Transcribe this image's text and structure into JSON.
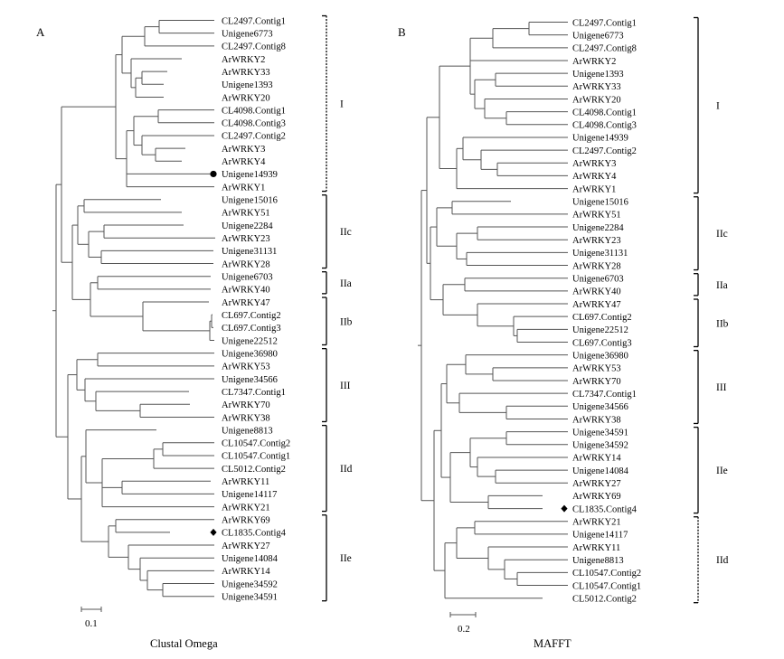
{
  "panels": [
    {
      "id": "A",
      "letter": "A",
      "caption": "Clustal Omega",
      "scale_label": "0.1",
      "leaves": [
        "CL2497.Contig1",
        "Unigene6773",
        "CL2497.Contig8",
        "ArWRKY2",
        "ArWRKY33",
        "Unigene1393",
        "ArWRKY20",
        "CL4098.Contig1",
        "CL4098.Contig3",
        "CL2497.Contig2",
        "ArWRKY3",
        "ArWRKY4",
        "Unigene14939",
        "ArWRKY1",
        "Unigene15016",
        "ArWRKY51",
        "Unigene2284",
        "ArWRKY23",
        "Unigene31131",
        "ArWRKY28",
        "Unigene6703",
        "ArWRKY40",
        "ArWRKY47",
        "CL697.Contig2",
        "CL697.Contig3",
        "Unigene22512",
        "Unigene36980",
        "ArWRKY53",
        "Unigene34566",
        "CL7347.Contig1",
        "ArWRKY70",
        "ArWRKY38",
        "Unigene8813",
        "CL10547.Contig2",
        "CL10547.Contig1",
        "CL5012.Contig2",
        "ArWRKY11",
        "Unigene14117",
        "ArWRKY21",
        "ArWRKY69",
        "CL1835.Contig4",
        "ArWRKY27",
        "Unigene14084",
        "ArWRKY14",
        "Unigene34592",
        "Unigene34591"
      ],
      "groups": [
        {
          "label": "I",
          "from": 0,
          "to": 13,
          "dashed": true
        },
        {
          "label": "IIc",
          "from": 14,
          "to": 19,
          "dashed": false
        },
        {
          "label": "IIa",
          "from": 20,
          "to": 21,
          "dashed": false
        },
        {
          "label": "IIb",
          "from": 22,
          "to": 25,
          "dashed": false
        },
        {
          "label": "III",
          "from": 26,
          "to": 31,
          "dashed": false
        },
        {
          "label": "IId",
          "from": 32,
          "to": 38,
          "dashed": false
        },
        {
          "label": "IIe",
          "from": 39,
          "to": 45,
          "dashed": false
        }
      ],
      "markers": [
        {
          "leaf": "Unigene14939",
          "shape": "circle"
        },
        {
          "leaf": "CL1835.Contig4",
          "shape": "diamond"
        }
      ]
    },
    {
      "id": "B",
      "letter": "B",
      "caption": "MAFFT",
      "scale_label": "0.2",
      "leaves": [
        "CL2497.Contig1",
        "Unigene6773",
        "CL2497.Contig8",
        "ArWRKY2",
        "Unigene1393",
        "ArWRKY33",
        "ArWRKY20",
        "CL4098.Contig1",
        "CL4098.Contig3",
        "Unigene14939",
        "CL2497.Contig2",
        "ArWRKY3",
        "ArWRKY4",
        "ArWRKY1",
        "Unigene15016",
        "ArWRKY51",
        "Unigene2284",
        "ArWRKY23",
        "Unigene31131",
        "ArWRKY28",
        "Unigene6703",
        "ArWRKY40",
        "ArWRKY47",
        "CL697.Contig2",
        "Unigene22512",
        "CL697.Contig3",
        "Unigene36980",
        "ArWRKY53",
        "ArWRKY70",
        "CL7347.Contig1",
        "Unigene34566",
        "ArWRKY38",
        "Unigene34591",
        "Unigene34592",
        "ArWRKY14",
        "Unigene14084",
        "ArWRKY27",
        "ArWRKY69",
        "CL1835.Contig4",
        "ArWRKY21",
        "Unigene14117",
        "ArWRKY11",
        "Unigene8813",
        "CL10547.Contig2",
        "CL10547.Contig1",
        "CL5012.Contig2"
      ],
      "groups": [
        {
          "label": "I",
          "from": 0,
          "to": 13,
          "dashed": false
        },
        {
          "label": "IIc",
          "from": 14,
          "to": 19,
          "dashed": false
        },
        {
          "label": "IIa",
          "from": 20,
          "to": 21,
          "dashed": false
        },
        {
          "label": "IIb",
          "from": 22,
          "to": 25,
          "dashed": false
        },
        {
          "label": "III",
          "from": 26,
          "to": 31,
          "dashed": false
        },
        {
          "label": "IIe",
          "from": 32,
          "to": 38,
          "dashed": false
        },
        {
          "label": "IId",
          "from": 39,
          "to": 45,
          "dashed": true
        }
      ],
      "markers": [
        {
          "leaf": "CL1835.Contig4",
          "shape": "diamond"
        }
      ]
    }
  ]
}
